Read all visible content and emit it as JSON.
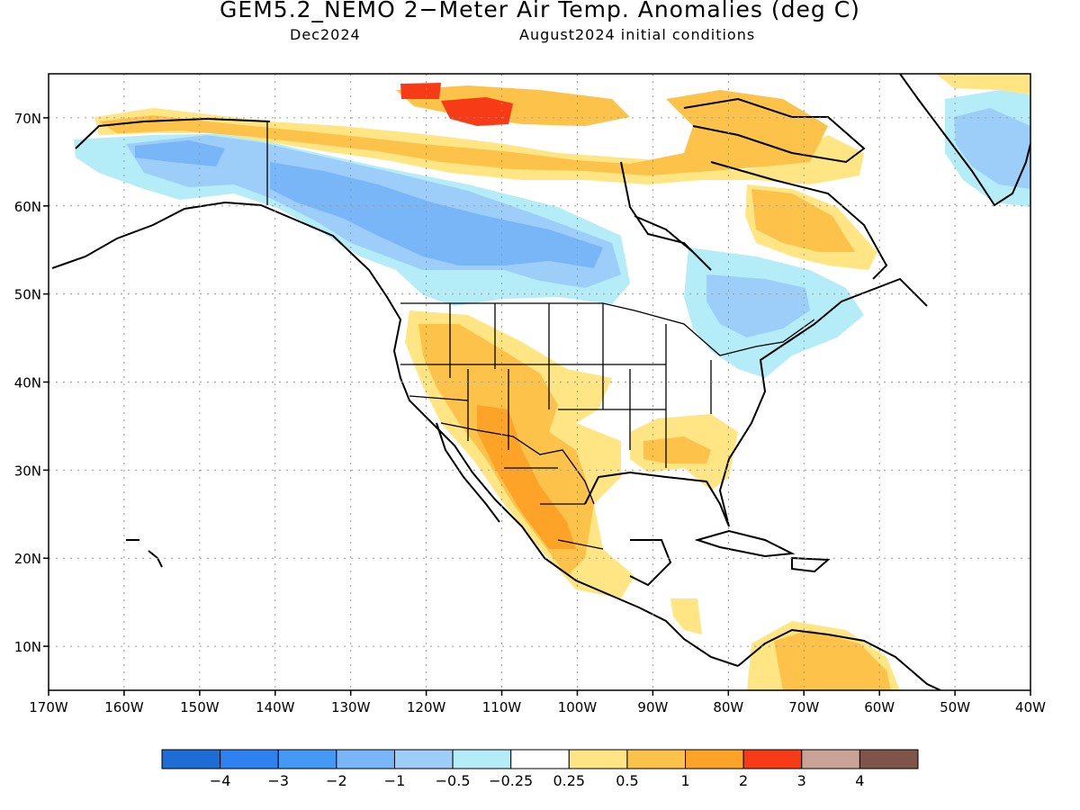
{
  "title": "GEM5.2_NEMO 2−Meter Air Temp. Anomalies (deg C)",
  "subtitle_month": "Dec2024",
  "subtitle_ic": "August2024 initial conditions",
  "map": {
    "lon_range": [
      -170,
      -40
    ],
    "lat_range": [
      5,
      75
    ],
    "lon_ticks": [
      "170W",
      "160W",
      "150W",
      "140W",
      "130W",
      "120W",
      "110W",
      "100W",
      "90W",
      "80W",
      "70W",
      "60W",
      "50W",
      "40W"
    ],
    "lat_ticks": [
      "10N",
      "20N",
      "30N",
      "40N",
      "50N",
      "60N",
      "70N"
    ],
    "grid": "dotted"
  },
  "legend": {
    "colors": [
      "#1e6cd6",
      "#2e82ef",
      "#4499f4",
      "#78b6f7",
      "#9dcdf9",
      "#b4ecf8",
      "#ffffff",
      "#ffe583",
      "#fcc24a",
      "#fca328",
      "#f63b16",
      "#c9a396",
      "#7f5549"
    ],
    "labels": [
      "−4",
      "−3",
      "−2",
      "−1",
      "−0.5",
      "−0.25",
      "0.25",
      "0.5",
      "1",
      "2",
      "3",
      "4"
    ]
  },
  "anomaly_regions": [
    {
      "name": "alaska-yukon-cold",
      "level": "-1",
      "color": "#78b6f7"
    },
    {
      "name": "western-canada-cold",
      "level": "-1",
      "color": "#78b6f7"
    },
    {
      "name": "quebec-great-lakes-cold",
      "level": "-0.5",
      "color": "#9dcdf9"
    },
    {
      "name": "greenland-cold",
      "level": "-0.5",
      "color": "#9dcdf9"
    },
    {
      "name": "us-southwest-warm",
      "level": "1",
      "color": "#fcc24a"
    },
    {
      "name": "mexico-warm",
      "level": "1",
      "color": "#fcc24a"
    },
    {
      "name": "southeast-us-warm",
      "level": "0.5",
      "color": "#ffe583"
    },
    {
      "name": "arctic-archipelago-warm",
      "level": "1",
      "color": "#fcc24a"
    },
    {
      "name": "baffin-hot-spot",
      "level": "3",
      "color": "#f63b16"
    },
    {
      "name": "labrador-warm",
      "level": "1",
      "color": "#fcc24a"
    },
    {
      "name": "venezuela-warm",
      "level": "1",
      "color": "#fcc24a"
    }
  ]
}
